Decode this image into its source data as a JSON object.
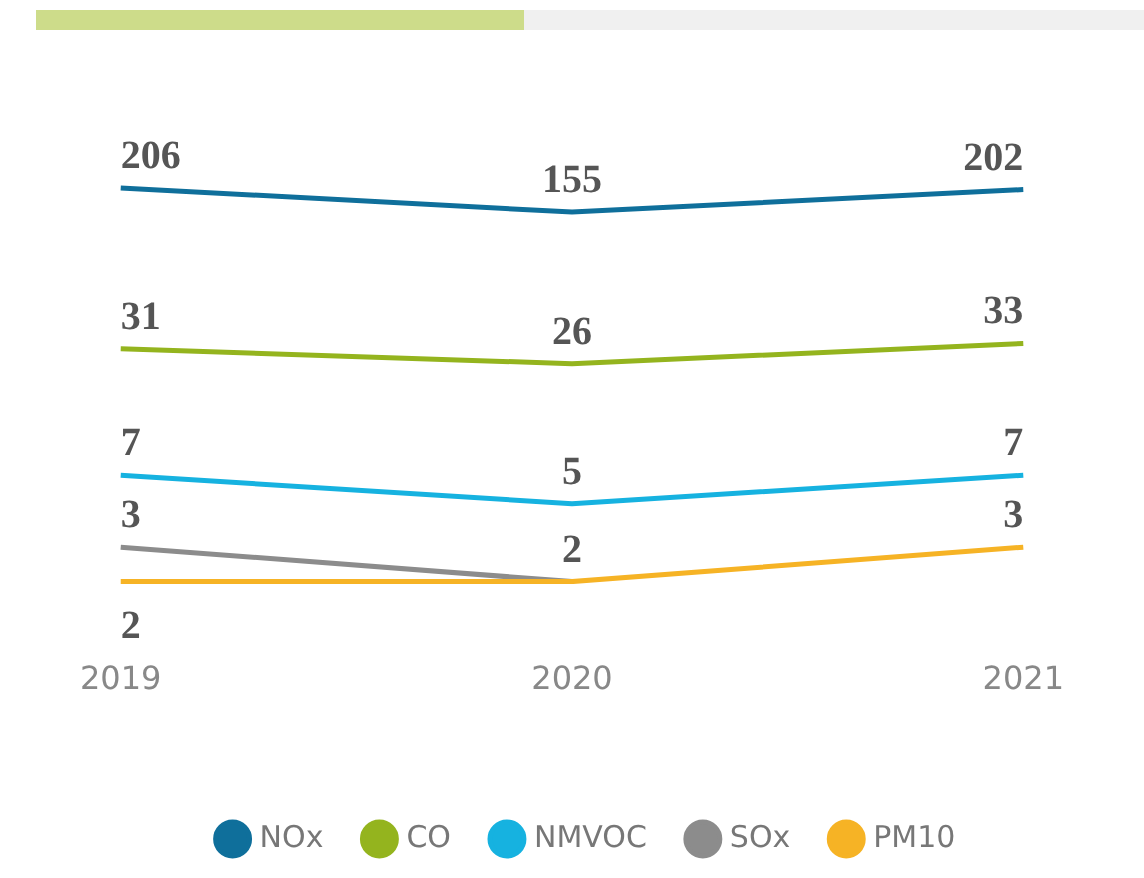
{
  "chart_data": {
    "type": "line",
    "categories": [
      "2019",
      "2020",
      "2021"
    ],
    "series": [
      {
        "name": "NOx",
        "color": "#0f6f9b",
        "values": [
          206,
          155,
          202
        ],
        "value_labels": [
          "206",
          "155",
          "202"
        ]
      },
      {
        "name": "CO",
        "color": "#94b41e",
        "values": [
          31,
          26,
          33
        ],
        "value_labels": [
          "31",
          "26",
          "33"
        ]
      },
      {
        "name": "NMVOC",
        "color": "#16b2e0",
        "values": [
          7,
          5,
          7
        ],
        "value_labels": [
          "7",
          "5",
          "7"
        ]
      },
      {
        "name": "SOx",
        "color": "#8c8c8c",
        "values": [
          3,
          2,
          null
        ],
        "value_labels": [
          "3",
          null,
          null
        ]
      },
      {
        "name": "PM10",
        "color": "#f6b325",
        "values": [
          2,
          2,
          3
        ],
        "value_labels": [
          "2",
          "2",
          "3"
        ]
      }
    ],
    "log": true,
    "tick_labels": "x",
    "grid": false,
    "legend": "bottom",
    "marker": "none",
    "line_style": "solid"
  }
}
